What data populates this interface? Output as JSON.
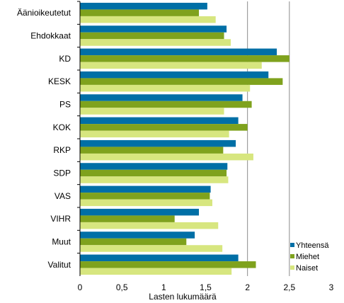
{
  "chart_data": {
    "type": "bar",
    "orientation": "horizontal",
    "categories": [
      "Äänioikeutetut",
      "Ehdokkaat",
      "KD",
      "KESK",
      "PS",
      "KOK",
      "RKP",
      "SDP",
      "VAS",
      "VIHR",
      "Muut",
      "Valitut"
    ],
    "series": [
      {
        "name": "Yhteensä",
        "color": "#006fa6",
        "values": [
          1.52,
          1.75,
          2.35,
          2.25,
          1.94,
          1.89,
          1.86,
          1.76,
          1.56,
          1.42,
          1.37,
          1.89
        ]
      },
      {
        "name": "Miehet",
        "color": "#7fa21d",
        "values": [
          1.42,
          1.72,
          2.5,
          2.42,
          2.05,
          2.0,
          1.71,
          1.75,
          1.55,
          1.13,
          1.27,
          2.1
        ]
      },
      {
        "name": "Naiset",
        "color": "#d7e67f",
        "values": [
          1.62,
          1.8,
          2.17,
          2.03,
          1.72,
          1.78,
          2.07,
          1.77,
          1.58,
          1.65,
          1.7,
          1.81
        ]
      }
    ],
    "xlabel": "Lasten lukumäärä",
    "xlim": [
      0,
      3
    ],
    "xticks": [
      "0",
      "0,5",
      "1",
      "1,5",
      "2",
      "2,5",
      "3"
    ],
    "grid": "vertical lines at 2 and 2,5",
    "legend": "bottom-right"
  }
}
